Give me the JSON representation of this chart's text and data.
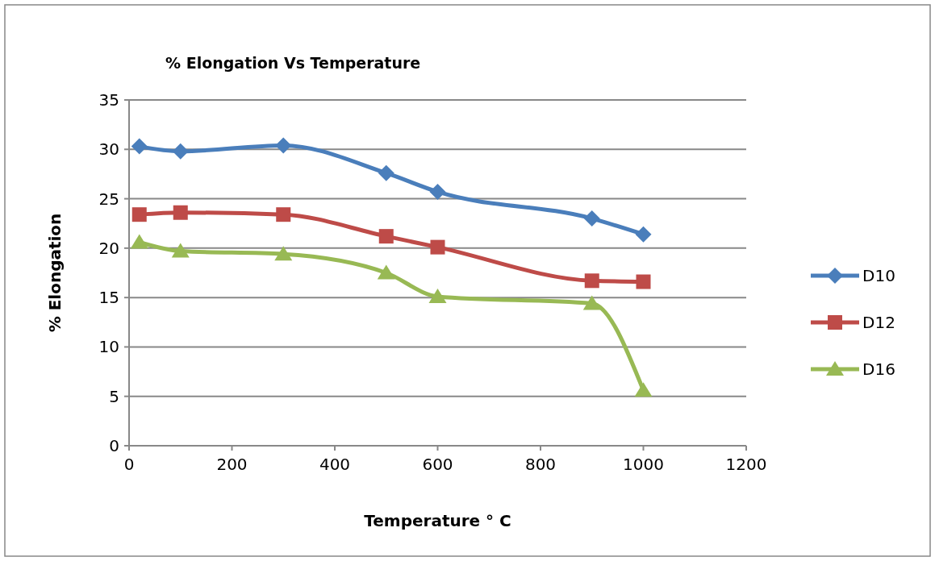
{
  "chart_data": {
    "type": "line",
    "title": "%  Elongation  Vs Temperature",
    "xlabel": "Temperature   ° C",
    "ylabel": "% Elongation",
    "x": [
      20,
      100,
      300,
      500,
      600,
      900,
      1000
    ],
    "series": [
      {
        "name": "D10",
        "color": "#4a7ebb",
        "marker": "diamond",
        "values": [
          30.3,
          29.8,
          30.4,
          27.6,
          25.7,
          23.0,
          21.4
        ]
      },
      {
        "name": "D12",
        "color": "#be4b48",
        "marker": "square",
        "values": [
          23.4,
          23.6,
          23.4,
          21.2,
          20.1,
          16.7,
          16.6
        ]
      },
      {
        "name": "D16",
        "color": "#98b954",
        "marker": "triangle",
        "values": [
          20.6,
          19.7,
          19.4,
          17.5,
          15.1,
          14.4,
          5.6
        ]
      }
    ],
    "xlim": [
      0,
      1200
    ],
    "xticks": [
      0,
      200,
      400,
      600,
      800,
      1000,
      1200
    ],
    "ylim": [
      0,
      35
    ],
    "yticks": [
      0,
      5,
      10,
      15,
      20,
      25,
      30,
      35
    ],
    "grid": "y",
    "legend": "right"
  }
}
